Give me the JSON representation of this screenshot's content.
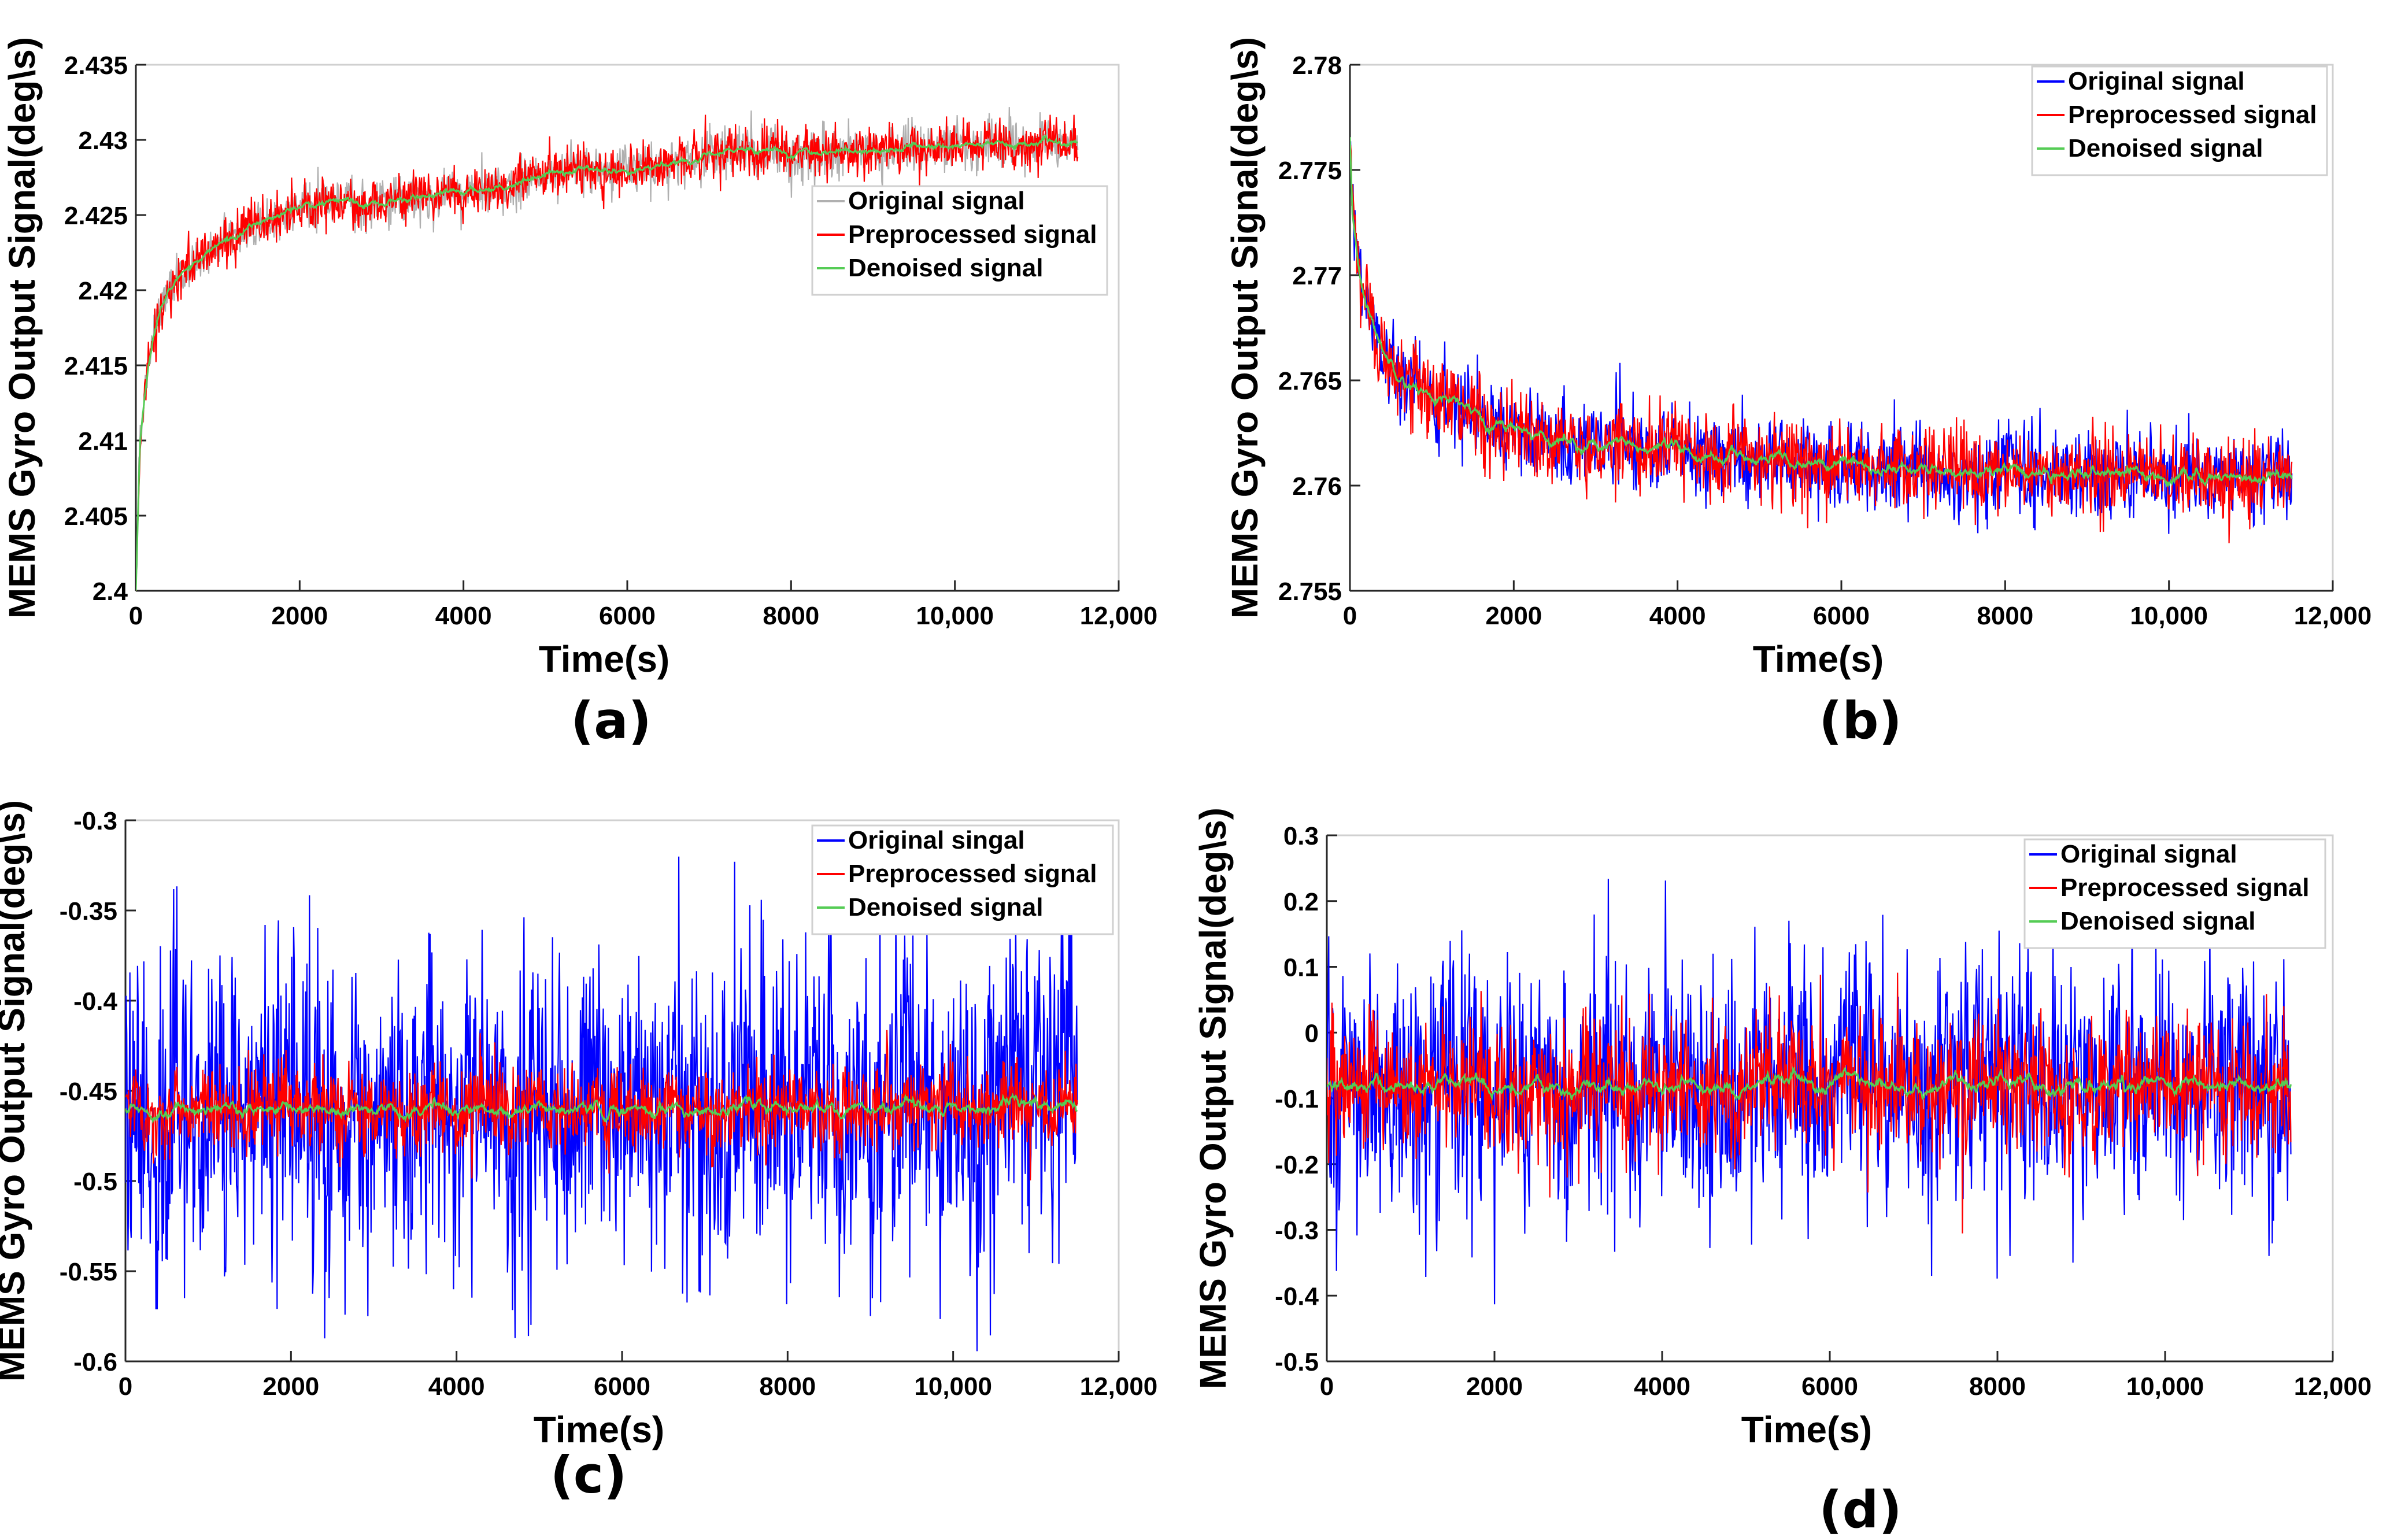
{
  "chart_data": [
    {
      "type": "line",
      "panel_label": "(a)",
      "xlabel": "Time(s)",
      "ylabel": "MEMS Gyro Output Signal(deg\\s)",
      "xlim": [
        0,
        12000
      ],
      "ylim": [
        2.4,
        2.435
      ],
      "xticks": [
        0,
        2000,
        4000,
        6000,
        8000,
        10000,
        12000
      ],
      "xticklabels": [
        "0",
        "2000",
        "4000",
        "6000",
        "8000",
        "10,000",
        "12,000"
      ],
      "yticks": [
        2.4,
        2.405,
        2.41,
        2.415,
        2.42,
        2.425,
        2.43,
        2.435
      ],
      "yticklabels": [
        "2.4",
        "2.405",
        "2.41",
        "2.415",
        "2.42",
        "2.425",
        "2.43",
        "2.435"
      ],
      "legend_position": "center-right",
      "x_end": 11500,
      "series": [
        {
          "name": "Original signal",
          "color": "#b0b0b0",
          "noise": 0.0009
        },
        {
          "name": "Preprocessed signal",
          "color": "#ff0000",
          "noise": 0.0009
        },
        {
          "name": "Denoised signal",
          "color": "#55cc55",
          "noise": 0.0002
        }
      ],
      "trend": {
        "x": [
          0,
          50,
          150,
          300,
          600,
          1000,
          1500,
          2000,
          2600,
          3000,
          3500,
          4000,
          4500,
          5000,
          5500,
          6000,
          6500,
          7000,
          7500,
          8000,
          9000,
          10000,
          11500
        ],
        "y": [
          2.4,
          2.41,
          2.415,
          2.419,
          2.4215,
          2.423,
          2.4245,
          2.4255,
          2.426,
          2.4258,
          2.4262,
          2.4265,
          2.427,
          2.4278,
          2.4282,
          2.4275,
          2.4285,
          2.4288,
          2.4295,
          2.4292,
          2.4293,
          2.4297,
          2.4298
        ]
      }
    },
    {
      "type": "line",
      "panel_label": "(b)",
      "xlabel": "Time(s)",
      "ylabel": "MEMS Gyro Output Signal(deg\\s)",
      "xlim": [
        0,
        12000
      ],
      "ylim": [
        2.755,
        2.78
      ],
      "xticks": [
        0,
        2000,
        4000,
        6000,
        8000,
        10000,
        12000
      ],
      "xticklabels": [
        "0",
        "2000",
        "4000",
        "6000",
        "8000",
        "10,000",
        "12,000"
      ],
      "yticks": [
        2.755,
        2.76,
        2.765,
        2.77,
        2.775,
        2.78
      ],
      "yticklabels": [
        "2.755",
        "2.76",
        "2.765",
        "2.77",
        "2.775",
        "2.78"
      ],
      "legend_position": "top-right",
      "x_end": 11500,
      "series": [
        {
          "name": "Original signal",
          "color": "#0000ff",
          "noise": 0.0011
        },
        {
          "name": "Preprocessed signal",
          "color": "#ff0000",
          "noise": 0.0011
        },
        {
          "name": "Denoised signal",
          "color": "#55cc55",
          "noise": 0.00025
        }
      ],
      "trend": {
        "x": [
          0,
          30,
          100,
          200,
          400,
          700,
          1000,
          1500,
          2000,
          2500,
          3000,
          4000,
          5000,
          6000,
          7000,
          8000,
          9000,
          10000,
          11500
        ],
        "y": [
          2.7765,
          2.7725,
          2.7705,
          2.7685,
          2.7665,
          2.765,
          2.7642,
          2.7635,
          2.7628,
          2.7622,
          2.762,
          2.7615,
          2.7612,
          2.761,
          2.7607,
          2.7606,
          2.7605,
          2.7605,
          2.7604
        ]
      }
    },
    {
      "type": "line",
      "panel_label": "(c)",
      "xlabel": "Time(s)",
      "ylabel": "MEMS Gyro Output Signal(deg\\s)",
      "xlim": [
        0,
        12000
      ],
      "ylim": [
        -0.6,
        -0.3
      ],
      "xticks": [
        0,
        2000,
        4000,
        6000,
        8000,
        10000,
        12000
      ],
      "xticklabels": [
        "0",
        "2000",
        "4000",
        "6000",
        "8000",
        "10,000",
        "12,000"
      ],
      "yticks": [
        -0.6,
        -0.55,
        -0.5,
        -0.45,
        -0.4,
        -0.35,
        -0.3
      ],
      "yticklabels": [
        "-0.6",
        "-0.55",
        "-0.5",
        "-0.45",
        "-0.4",
        "-0.35",
        "-0.3"
      ],
      "legend_position": "top-right",
      "x_end": 11500,
      "series": [
        {
          "name": "Original singal",
          "color": "#0000ff",
          "noise": 0.05
        },
        {
          "name": "Preprocessed signal",
          "color": "#ff0000",
          "noise": 0.013
        },
        {
          "name": "Denoised signal",
          "color": "#55cc55",
          "noise": 0.003
        }
      ],
      "trend": {
        "x": [
          0,
          11500
        ],
        "y": [
          -0.46,
          -0.46
        ]
      }
    },
    {
      "type": "line",
      "panel_label": "(d)",
      "xlabel": "Time(s)",
      "ylabel": "MEMS Gyro Output Signal(deg\\s)",
      "xlim": [
        0,
        12000
      ],
      "ylim": [
        -0.5,
        0.3
      ],
      "xticks": [
        0,
        2000,
        4000,
        6000,
        8000,
        10000,
        12000
      ],
      "xticklabels": [
        "0",
        "2000",
        "4000",
        "6000",
        "8000",
        "10,000",
        "12,000"
      ],
      "yticks": [
        -0.5,
        -0.4,
        -0.3,
        -0.2,
        -0.1,
        0,
        0.1,
        0.2,
        0.3
      ],
      "yticklabels": [
        "-0.5",
        "-0.4",
        "-0.3",
        "-0.2",
        "-0.1",
        "0",
        "0.1",
        "0.2",
        "0.3"
      ],
      "legend_position": "top-right",
      "x_end": 11500,
      "series": [
        {
          "name": "Original signal",
          "color": "#0000ff",
          "noise": 0.11
        },
        {
          "name": "Preprocessed signal",
          "color": "#ff0000",
          "noise": 0.055
        },
        {
          "name": "Denoised signal",
          "color": "#55cc55",
          "noise": 0.01
        }
      ],
      "trend": {
        "x": [
          0,
          11500
        ],
        "y": [
          -0.08,
          -0.08
        ]
      }
    }
  ]
}
